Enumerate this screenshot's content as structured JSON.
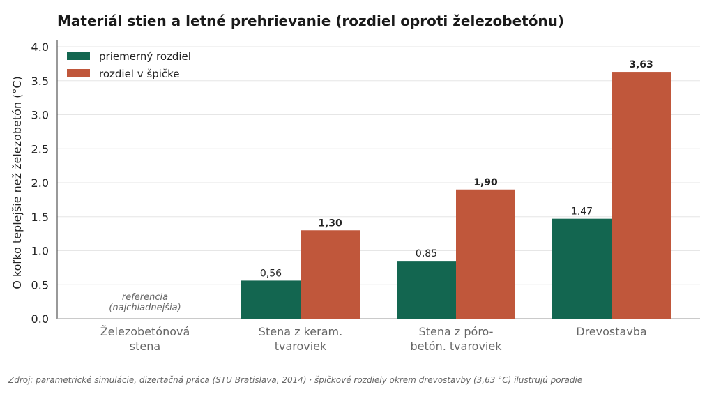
{
  "chart_data": {
    "type": "bar",
    "title": "Materiál stien a letné prehrievanie (rozdiel oproti železobetónu)",
    "ylabel": "O koľko teplejšie než železobetón (°C)",
    "xlabel": "",
    "ylim": [
      0,
      4.0
    ],
    "yticks": [
      "0.0",
      "0.5",
      "1.0",
      "1.5",
      "2.0",
      "2.5",
      "3.0",
      "3.5",
      "4.0"
    ],
    "grid": true,
    "legend_position": "top-left",
    "categories": [
      [
        "Železobetónová",
        "stena"
      ],
      [
        "Stena z keram.",
        "tvaroviek"
      ],
      [
        "Stena z póro-",
        "betón. tvaroviek"
      ],
      [
        "Drevostavba"
      ]
    ],
    "series": [
      {
        "name": "priemerný rozdiel",
        "color": "#136650",
        "values": [
          0,
          0.56,
          0.85,
          1.47
        ],
        "labels": [
          "",
          "0,56",
          "0,85",
          "1,47"
        ]
      },
      {
        "name": "rozdiel v špičke",
        "color": "#c0573b",
        "values": [
          0,
          1.3,
          1.9,
          3.63
        ],
        "labels": [
          "",
          "1,30",
          "1,90",
          "3,63"
        ]
      }
    ],
    "annotations": {
      "reference": [
        "referencia",
        "(najchladnejšia)"
      ]
    },
    "source": "Zdroj: parametrické simulácie, dizertačná práca (STU Bratislava, 2014)  ·  špičkové rozdiely okrem drevostavby (3,63 °C) ilustrujú poradie"
  }
}
